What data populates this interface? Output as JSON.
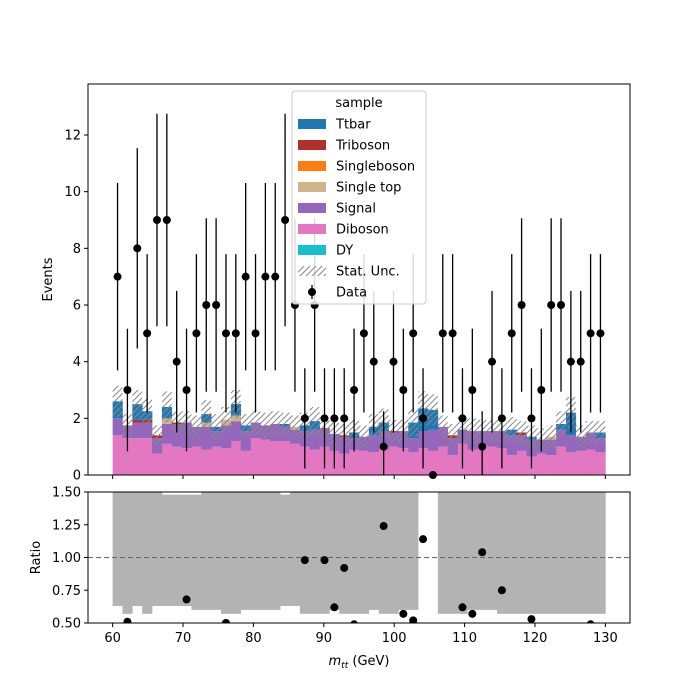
{
  "chart_data": [
    {
      "type": "bar",
      "stacked": true,
      "ylabel": "Events",
      "ylim": [
        0,
        13.8
      ],
      "yticks": [
        "0",
        "2",
        "4",
        "6",
        "8",
        "10",
        "12"
      ],
      "legend": {
        "title": "sample",
        "position": "top-center",
        "entries": [
          "Ttbar",
          "Triboson",
          "Singleboson",
          "Single top",
          "Signal",
          "Diboson",
          "DY",
          "Stat. Unc.",
          "Data"
        ]
      },
      "bins": {
        "start": 60,
        "width": 1.4,
        "count": 50
      },
      "colors": {
        "Ttbar": "#1f77b4",
        "Triboson": "#b0302c",
        "Singleboson": "#ff7f0e",
        "Single top": "#d2b48c",
        "Signal": "#9467bd",
        "Diboson": "#e377c2",
        "DY": "#17becf"
      },
      "series": [
        {
          "name": "Diboson",
          "values": [
            1.4,
            1.3,
            1.3,
            1.3,
            0.75,
            1.1,
            1.0,
            0.95,
            1.0,
            0.9,
            1.0,
            0.95,
            1.2,
            0.85,
            1.3,
            1.25,
            1.2,
            1.2,
            1.1,
            1.0,
            0.9,
            1.0,
            0.85,
            0.75,
            0.9,
            0.85,
            0.8,
            0.9,
            1.0,
            0.95,
            0.8,
            0.95,
            0.85,
            1.0,
            0.7,
            1.1,
            0.9,
            1.05,
            1.0,
            0.95,
            0.7,
            0.85,
            0.65,
            0.75,
            0.7,
            1.0,
            0.8,
            0.85,
            0.9,
            0.8
          ]
        },
        {
          "name": "Signal",
          "values": [
            0.6,
            0.45,
            0.55,
            0.55,
            0.55,
            0.7,
            0.8,
            0.9,
            0.7,
            0.8,
            0.55,
            0.8,
            0.7,
            0.7,
            0.55,
            0.5,
            0.6,
            0.5,
            0.5,
            0.55,
            0.7,
            0.6,
            0.6,
            0.6,
            0.4,
            0.5,
            0.6,
            0.65,
            0.5,
            0.6,
            0.5,
            0.6,
            0.75,
            0.7,
            0.6,
            0.5,
            0.65,
            0.5,
            0.55,
            0.6,
            0.7,
            0.55,
            0.6,
            0.5,
            0.55,
            0.6,
            0.6,
            0.5,
            0.6,
            0.5
          ]
        },
        {
          "name": "Single top",
          "values": [
            0,
            0,
            0,
            0,
            0,
            0.2,
            0,
            0,
            0,
            0.15,
            0,
            0.2,
            0.2,
            0,
            0,
            0,
            0,
            0,
            0.1,
            0,
            0,
            0,
            0,
            0,
            0,
            0,
            0,
            0,
            0,
            0,
            0,
            0,
            0,
            0,
            0,
            0,
            0,
            0,
            0,
            0,
            0,
            0,
            0,
            0,
            0.1,
            0,
            0,
            0,
            0,
            0
          ]
        },
        {
          "name": "Singleboson",
          "values": [
            0,
            0,
            0,
            0,
            0,
            0,
            0,
            0,
            0,
            0,
            0,
            0,
            0,
            0,
            0,
            0,
            0,
            0,
            0,
            0,
            0,
            0,
            0,
            0,
            0,
            0,
            0,
            0,
            0,
            0,
            0,
            0,
            0,
            0,
            0,
            0,
            0,
            0,
            0,
            0,
            0,
            0,
            0,
            0,
            0,
            0,
            0,
            0,
            0,
            0
          ]
        },
        {
          "name": "Triboson",
          "values": [
            0,
            0,
            0.1,
            0.1,
            0.1,
            0,
            0.05,
            0,
            0,
            0,
            0,
            0,
            0,
            0,
            0,
            0,
            0,
            0,
            0,
            0,
            0,
            0.05,
            0,
            0.05,
            0,
            0,
            0,
            0,
            0.05,
            0,
            0,
            0,
            0,
            0,
            0.1,
            0,
            0,
            0,
            0,
            0,
            0,
            0.1,
            0,
            0,
            0,
            0,
            0,
            0,
            0,
            0
          ]
        },
        {
          "name": "Ttbar",
          "values": [
            0.6,
            0,
            0.55,
            0.3,
            0,
            0.4,
            0,
            0,
            0,
            0.3,
            0.15,
            0,
            0.4,
            0.2,
            0,
            0,
            0,
            0.1,
            0,
            0.2,
            0.3,
            0,
            0,
            0,
            0.2,
            0,
            0.3,
            0.3,
            0,
            0,
            0.55,
            0.8,
            0.7,
            0,
            0,
            0,
            0,
            0,
            0,
            0,
            0.2,
            0,
            0.1,
            0,
            0,
            0.2,
            0.8,
            0,
            0,
            0.2
          ]
        },
        {
          "name": "DY",
          "values": [
            0,
            0,
            0,
            0,
            0,
            0,
            0,
            0,
            0,
            0,
            0,
            0,
            0,
            0,
            0,
            0,
            0,
            0,
            0,
            0,
            0,
            0,
            0,
            0,
            0,
            0,
            0,
            0,
            0,
            0,
            0,
            0,
            0,
            0,
            0,
            0,
            0,
            0,
            0,
            0,
            0,
            0,
            0,
            0,
            0,
            0,
            0,
            0,
            0,
            0
          ]
        }
      ],
      "stat_unc_half": [
        0.55,
        0.4,
        0.5,
        0.45,
        0.35,
        0.55,
        0.4,
        0.4,
        0.4,
        0.5,
        0.45,
        0.45,
        0.5,
        0.4,
        0.45,
        0.45,
        0.45,
        0.4,
        0.4,
        0.45,
        0.5,
        0.4,
        0.4,
        0.4,
        0.45,
        0.4,
        0.45,
        0.5,
        0.4,
        0.4,
        0.5,
        0.6,
        0.55,
        0.4,
        0.4,
        0.45,
        0.45,
        0.4,
        0.4,
        0.4,
        0.45,
        0.4,
        0.4,
        0.4,
        0.4,
        0.45,
        0.55,
        0.4,
        0.4,
        0.4
      ],
      "data": {
        "name": "Data",
        "x": [
          60.7,
          62.1,
          63.5,
          64.9,
          66.3,
          67.7,
          69.1,
          70.5,
          71.9,
          73.3,
          74.7,
          76.1,
          77.5,
          78.9,
          80.3,
          81.7,
          83.1,
          84.5,
          85.9,
          87.3,
          88.7,
          90.1,
          91.5,
          92.9,
          94.3,
          95.7,
          97.1,
          98.5,
          99.9,
          101.3,
          102.7,
          104.1,
          105.5,
          106.9,
          108.3,
          109.7,
          111.1,
          112.5,
          113.9,
          115.3,
          116.7,
          118.1,
          119.5,
          120.9,
          122.3,
          123.7,
          125.1,
          126.5,
          127.9,
          129.3
        ],
        "y": [
          7,
          3,
          8,
          5,
          9,
          9,
          4,
          3,
          5,
          6,
          6,
          5,
          5,
          7,
          5,
          7,
          7,
          9,
          6,
          2,
          6,
          2,
          2,
          2,
          3,
          5,
          4,
          1,
          4,
          3,
          5,
          2,
          0,
          5,
          5,
          2,
          3,
          1,
          4,
          2,
          5,
          6,
          2,
          3,
          6,
          6,
          4,
          4,
          5,
          5
        ]
      }
    },
    {
      "type": "scatter",
      "xlabel": "m_tt (GeV)",
      "ylabel": "Ratio",
      "xlim": [
        56.5,
        133.5
      ],
      "ylim": [
        0.5,
        1.5
      ],
      "xticks": [
        "60",
        "70",
        "80",
        "90",
        "100",
        "110",
        "120",
        "130"
      ],
      "yticks": [
        "0.50",
        "0.75",
        "1.00",
        "1.25",
        "1.50"
      ],
      "reference_line": 1.0,
      "band_lower": [
        0.63,
        0.57,
        0.63,
        0.57,
        0.63,
        0.63,
        0.63,
        0.63,
        0.6,
        0.6,
        0.6,
        0.57,
        0.57,
        0.6,
        0.6,
        0.6,
        0.6,
        0.63,
        0.63,
        0.57,
        0.57,
        0.57,
        0.6,
        0.57,
        0.57,
        0.57,
        0.6,
        0.57,
        0.57,
        0.6,
        0.6,
        0,
        0,
        0.57,
        0.57,
        0.57,
        0.6,
        0.6,
        0.6,
        0.57,
        0.57,
        0.57,
        0.57,
        0.57,
        0.57,
        0.57,
        0.57,
        0.57,
        0.57,
        0.57
      ],
      "band_upper": [
        1.5,
        1.5,
        1.5,
        1.5,
        1.5,
        1.48,
        1.48,
        1.48,
        1.48,
        1.5,
        1.5,
        1.5,
        1.5,
        1.5,
        1.5,
        1.5,
        1.5,
        1.48,
        1.5,
        1.5,
        1.5,
        1.5,
        1.5,
        1.5,
        1.5,
        1.5,
        1.5,
        1.5,
        1.5,
        1.5,
        1.5,
        0,
        0,
        1.5,
        1.5,
        1.5,
        1.5,
        1.5,
        1.5,
        1.5,
        1.5,
        1.5,
        1.5,
        1.5,
        1.5,
        1.5,
        1.5,
        1.5,
        1.5,
        1.5
      ],
      "points": {
        "x": [
          62.1,
          70.5,
          76.1,
          87.3,
          90.1,
          91.5,
          92.9,
          94.3,
          98.5,
          101.3,
          102.7,
          104.1,
          109.7,
          111.1,
          112.5,
          115.3,
          119.5,
          122.3,
          127.9
        ],
        "y": [
          0.51,
          0.68,
          0.5,
          0.98,
          0.98,
          0.62,
          0.92,
          0.49,
          1.24,
          0.57,
          0.52,
          1.14,
          0.62,
          0.57,
          1.04,
          0.75,
          0.53,
          0.45,
          0.49
        ]
      }
    }
  ]
}
